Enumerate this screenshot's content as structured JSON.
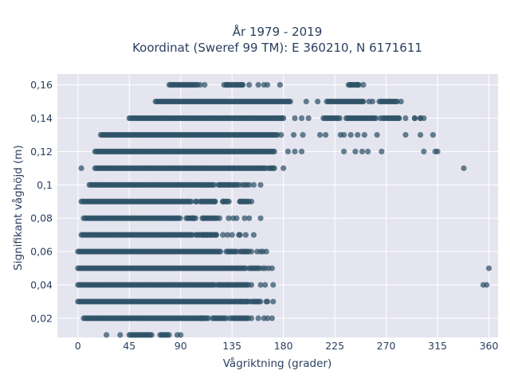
{
  "chart_data": {
    "type": "scatter",
    "title": "År 1979 - 2019",
    "subtitle": "Koordinat (Sweref 99 TM): E 360210, N 6171611",
    "xlabel": "Vågriktning (grader)",
    "ylabel": "Signifikant våghöjd (m)",
    "xlim": [
      -18,
      368
    ],
    "ylim": [
      0.0085,
      0.1665
    ],
    "xticks": [
      0,
      45,
      90,
      135,
      180,
      225,
      270,
      315,
      360
    ],
    "xtick_labels": [
      "0",
      "45",
      "90",
      "135",
      "180",
      "225",
      "270",
      "315",
      "360"
    ],
    "yticks": [
      0.02,
      0.04,
      0.06,
      0.08,
      0.1,
      0.12,
      0.14,
      0.16
    ],
    "ytick_labels": [
      "0,02",
      "0,04",
      "0,06",
      "0,08",
      "0,1",
      "0,12",
      "0,14",
      "0,16"
    ],
    "grid": true,
    "marker_color": "#2e5266",
    "plot_background": "#e5e5f0",
    "rows": [
      {
        "y": 0.01,
        "ranges": [
          [
            45,
            65
          ],
          [
            72,
            80
          ]
        ],
        "points": [
          25,
          37,
          87,
          90
        ]
      },
      {
        "y": 0.02,
        "ranges": [
          [
            5,
            115
          ],
          [
            118,
            130
          ],
          [
            135,
            150
          ]
        ],
        "points": [
          108,
          133,
          152,
          158,
          163,
          166,
          170
        ]
      },
      {
        "y": 0.03,
        "ranges": [
          [
            0,
            150
          ],
          [
            152,
            160
          ]
        ],
        "points": [
          143,
          148,
          165,
          166,
          171
        ]
      },
      {
        "y": 0.04,
        "ranges": [
          [
            0,
            120
          ],
          [
            122,
            150
          ]
        ],
        "points": [
          152,
          160,
          164,
          171,
          355,
          358
        ]
      },
      {
        "y": 0.05,
        "ranges": [
          [
            0,
            148
          ],
          [
            150,
            160
          ]
        ],
        "points": [
          162,
          164,
          167,
          170,
          360
        ]
      },
      {
        "y": 0.06,
        "ranges": [
          [
            0,
            125
          ],
          [
            130,
            140
          ],
          [
            142,
            150
          ]
        ],
        "points": [
          152,
          157,
          160,
          162,
          165
        ]
      },
      {
        "y": 0.07,
        "ranges": [
          [
            3,
            100
          ],
          [
            103,
            122
          ]
        ],
        "points": [
          100,
          110,
          113,
          116,
          121,
          127,
          131,
          135,
          141,
          142,
          147,
          154
        ]
      },
      {
        "y": 0.08,
        "ranges": [
          [
            5,
            90
          ],
          [
            95,
            102
          ],
          [
            110,
            121
          ]
        ],
        "points": [
          101,
          103,
          109,
          122,
          124,
          132,
          136,
          139,
          146,
          150,
          160
        ]
      },
      {
        "y": 0.09,
        "ranges": [
          [
            3,
            100
          ],
          [
            107,
            120
          ],
          [
            127,
            133
          ],
          [
            142,
            150
          ]
        ],
        "points": [
          103,
          104,
          120,
          127,
          142,
          152
        ]
      },
      {
        "y": 0.1,
        "ranges": [
          [
            10,
            120
          ],
          [
            125,
            140
          ]
        ],
        "points": [
          123,
          124,
          141,
          144,
          146,
          148,
          150,
          154,
          160
        ]
      },
      {
        "y": 0.11,
        "ranges": [
          [
            15,
            165
          ],
          [
            167,
            172
          ]
        ],
        "points": [
          3,
          172,
          180,
          338
        ]
      },
      {
        "y": 0.12,
        "ranges": [
          [
            15,
            172
          ]
        ],
        "points": [
          172,
          184,
          190,
          196,
          233,
          243,
          249,
          254,
          266,
          303,
          313,
          315
        ]
      },
      {
        "y": 0.13,
        "ranges": [
          [
            20,
            175
          ]
        ],
        "points": [
          178,
          189,
          197,
          212,
          217,
          230,
          233,
          239,
          245,
          251,
          262,
          287,
          300,
          311
        ]
      },
      {
        "y": 0.14,
        "ranges": [
          [
            45,
            180
          ],
          [
            215,
            230
          ],
          [
            235,
            262
          ],
          [
            267,
            282
          ]
        ],
        "points": [
          180,
          190,
          196,
          202,
          265,
          281,
          287,
          295,
          300,
          300,
          295,
          303
        ]
      },
      {
        "y": 0.15,
        "ranges": [
          [
            68,
            186
          ],
          [
            218,
            250
          ],
          [
            264,
            280
          ]
        ],
        "points": [
          186,
          200,
          210,
          250,
          255,
          258,
          283
        ]
      },
      {
        "y": 0.16,
        "ranges": [
          [
            80,
            105
          ],
          [
            130,
            145
          ],
          [
            237,
            247
          ]
        ],
        "points": [
          107,
          111,
          128,
          130,
          144,
          150,
          158,
          163,
          166,
          177,
          239,
          245,
          250
        ]
      }
    ],
    "range_step": 1.3
  }
}
